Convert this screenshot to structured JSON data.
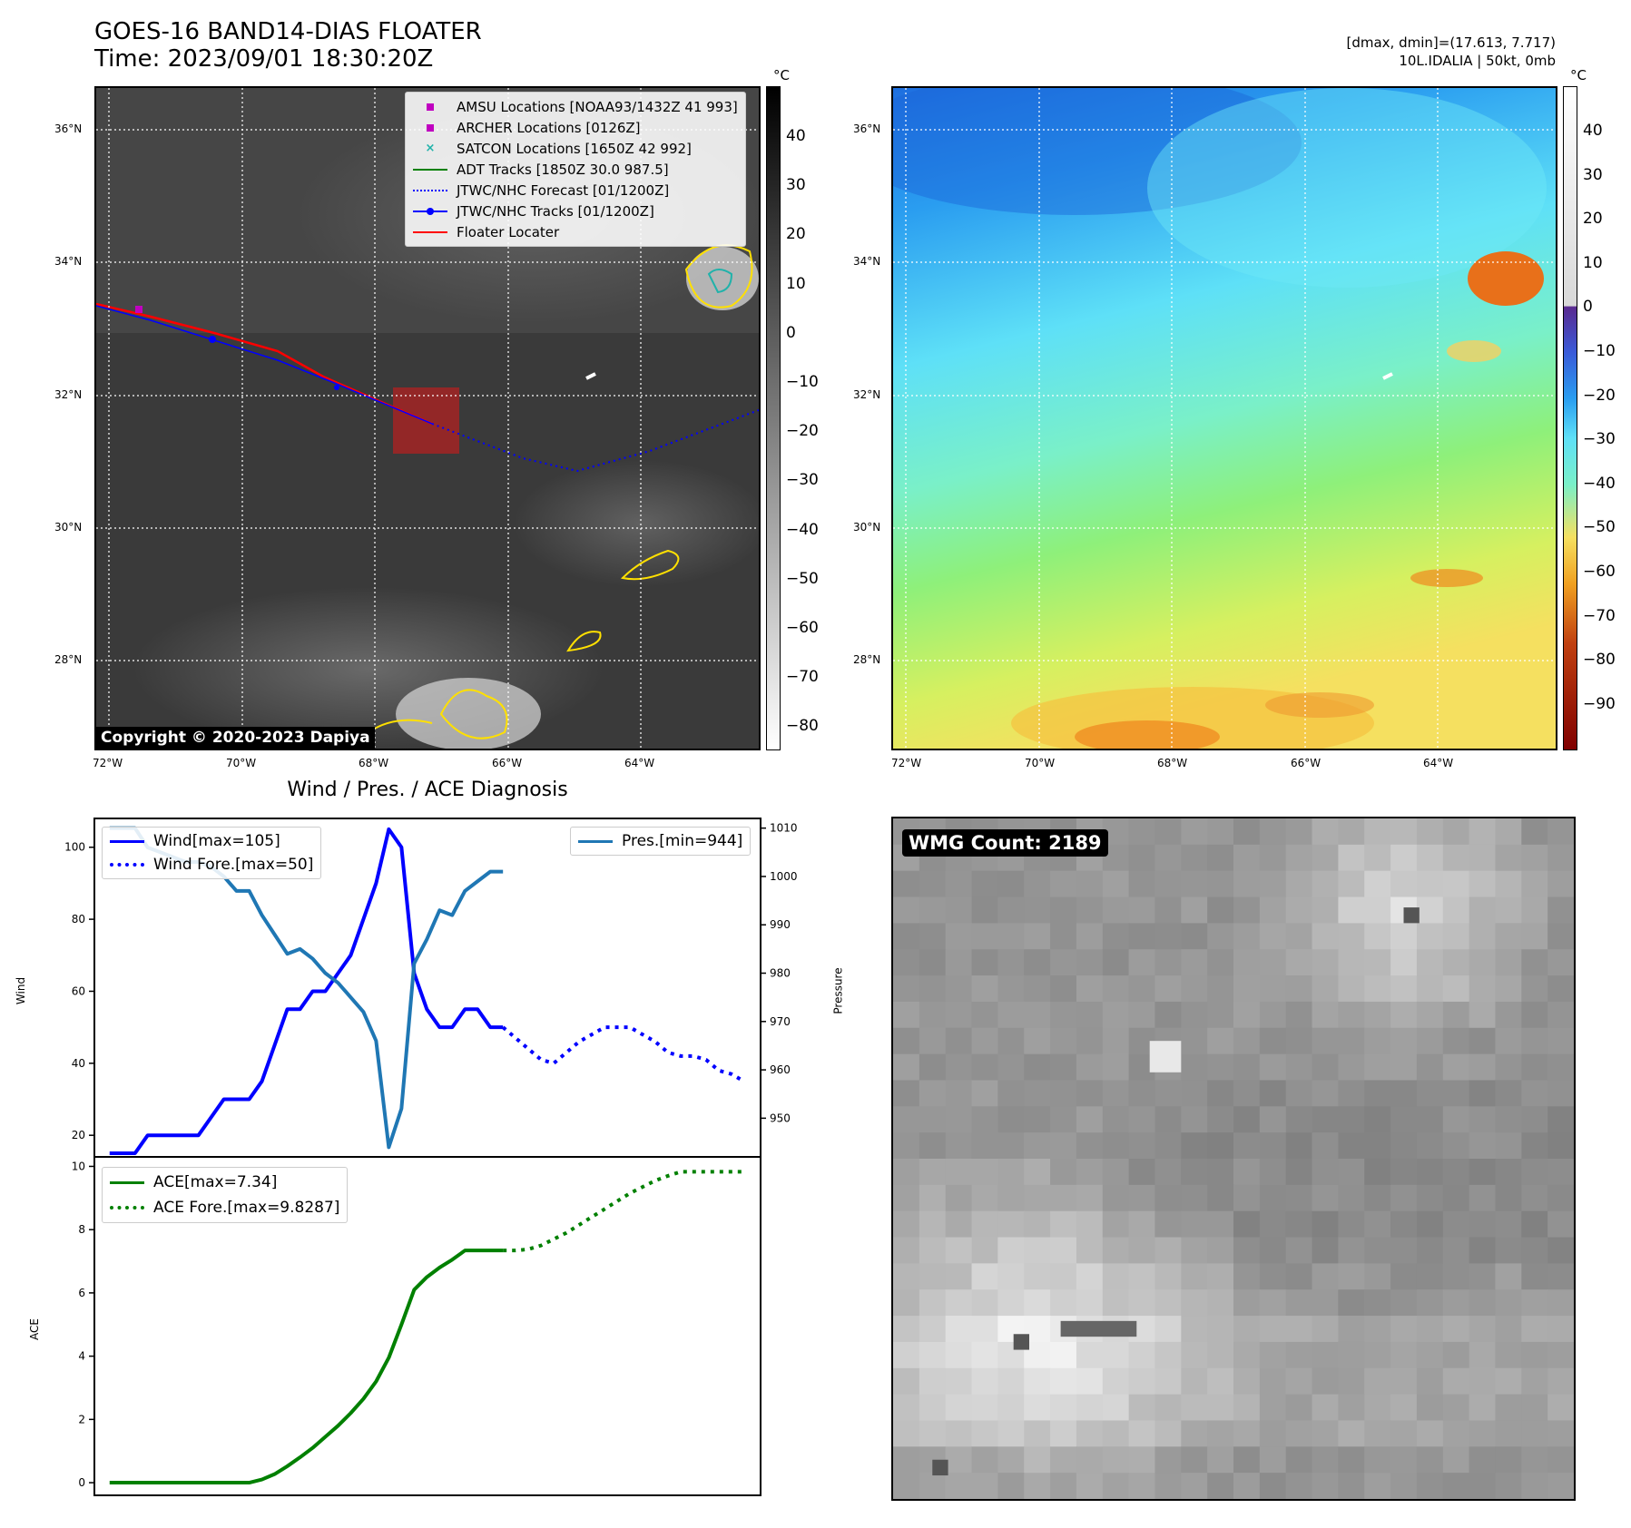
{
  "header": {
    "title_line1": "GOES-16 BAND14-DIAS FLOATER",
    "title_line2": "Time: 2023/09/01 18:30:20Z",
    "right_line1": "[dmax, dmin]=(17.613, 7.717)",
    "right_line2": "10L.IDALIA | 50kt, 0mb"
  },
  "map": {
    "lat_labels": [
      "36°N",
      "34°N",
      "32°N",
      "30°N",
      "28°N"
    ],
    "lon_labels": [
      "72°W",
      "70°W",
      "68°W",
      "66°W",
      "64°W"
    ],
    "copyright": "Copyright © 2020-2023 Dapiya",
    "colorbar_unit": "°C",
    "gray_ticks": [
      "40",
      "30",
      "20",
      "10",
      "0",
      "−10",
      "−20",
      "−30",
      "−40",
      "−50",
      "−60",
      "−70",
      "−80"
    ],
    "color_ticks": [
      "40",
      "30",
      "20",
      "10",
      "0",
      "−10",
      "−20",
      "−30",
      "−40",
      "−50",
      "−60",
      "−70",
      "−80",
      "−90"
    ],
    "legend": [
      {
        "label": "AMSU Locations [NOAA93/1432Z 41 993]",
        "color": "#c000c0",
        "style": "square"
      },
      {
        "label": "ARCHER Locations [0126Z]",
        "color": "#c000c0",
        "style": "square"
      },
      {
        "label": "SATCON Locations [1650Z 42 992]",
        "color": "#20b2aa",
        "style": "x"
      },
      {
        "label": "ADT Tracks [1850Z 30.0 987.5]",
        "color": "#008000",
        "style": "line"
      },
      {
        "label": "JTWC/NHC Forecast [01/1200Z]",
        "color": "#0000ff",
        "style": "dotted"
      },
      {
        "label": "JTWC/NHC Tracks [01/1200Z]",
        "color": "#0000ff",
        "style": "line-dot"
      },
      {
        "label": "Floater Locater",
        "color": "#ff0000",
        "style": "line"
      }
    ]
  },
  "diag_title": "Wind / Pres. / ACE Diagnosis",
  "wmg_label": "WMG Count: 2189",
  "chart_data": [
    {
      "type": "line",
      "title": "Wind / Pres. / ACE Diagnosis",
      "ylabel": "Wind",
      "y2label": "Pressure",
      "ylim": [
        14,
        108
      ],
      "y2lim": [
        942,
        1012
      ],
      "yticks": [
        20,
        40,
        60,
        80,
        100
      ],
      "y2ticks": [
        950,
        960,
        970,
        980,
        990,
        1000,
        1010
      ],
      "legend_left": [
        "Wind[max=105]",
        "Wind Fore.[max=50]"
      ],
      "legend_right": [
        "Pres.[min=944]"
      ],
      "series": [
        {
          "name": "Wind[max=105]",
          "color": "#0000ff",
          "style": "solid",
          "x": [
            0,
            1,
            2,
            3,
            4,
            5,
            6,
            7,
            8,
            9,
            10,
            11,
            12,
            13,
            14,
            15,
            16,
            17,
            18,
            19,
            20,
            21,
            22,
            23,
            24,
            25,
            26,
            27,
            28,
            29,
            30,
            31
          ],
          "y": [
            15,
            15,
            15,
            20,
            20,
            20,
            20,
            20,
            25,
            30,
            30,
            30,
            35,
            45,
            55,
            55,
            60,
            60,
            65,
            70,
            80,
            90,
            105,
            100,
            65,
            55,
            50,
            50,
            55,
            55,
            50,
            50
          ]
        },
        {
          "name": "Wind Fore.[max=50]",
          "color": "#0000ff",
          "style": "dotted",
          "x": [
            31,
            32,
            33,
            34,
            35,
            36,
            37,
            38,
            39,
            40,
            41,
            42,
            43,
            44,
            45,
            46,
            47,
            48,
            49,
            50
          ],
          "y": [
            50,
            47,
            44,
            41,
            40,
            43,
            46,
            48,
            50,
            50,
            50,
            48,
            46,
            43,
            42,
            42,
            41,
            38,
            37,
            35
          ]
        },
        {
          "name": "Pres.[min=944]",
          "color": "#1f77b4",
          "style": "solid",
          "axis": "y2",
          "x": [
            0,
            1,
            2,
            3,
            4,
            5,
            6,
            7,
            8,
            9,
            10,
            11,
            12,
            13,
            14,
            15,
            16,
            17,
            18,
            19,
            20,
            21,
            22,
            23,
            24,
            25,
            26,
            27,
            28,
            29,
            30,
            31
          ],
          "y": [
            1010,
            1010,
            1010,
            1006,
            1005,
            1004,
            1003,
            1003,
            1002,
            1000,
            997,
            997,
            992,
            988,
            984,
            985,
            983,
            980,
            978,
            975,
            972,
            966,
            944,
            952,
            982,
            987,
            993,
            992,
            997,
            999,
            1001,
            1001
          ]
        }
      ]
    },
    {
      "type": "line",
      "ylabel": "ACE",
      "ylim": [
        -0.4,
        10.3
      ],
      "yticks": [
        0,
        2,
        4,
        6,
        8,
        10
      ],
      "legend": [
        "ACE[max=7.34]",
        "ACE Fore.[max=9.8287]"
      ],
      "series": [
        {
          "name": "ACE[max=7.34]",
          "color": "#008000",
          "style": "solid",
          "x": [
            0,
            1,
            2,
            3,
            4,
            5,
            6,
            7,
            8,
            9,
            10,
            11,
            12,
            13,
            14,
            15,
            16,
            17,
            18,
            19,
            20,
            21,
            22,
            23,
            24,
            25,
            26,
            27,
            28,
            29,
            30,
            31
          ],
          "y": [
            0,
            0,
            0,
            0,
            0,
            0,
            0,
            0,
            0,
            0,
            0,
            0,
            0.1,
            0.27,
            0.52,
            0.8,
            1.1,
            1.45,
            1.8,
            2.2,
            2.65,
            3.2,
            3.95,
            5.0,
            6.1,
            6.5,
            6.8,
            7.05,
            7.34,
            7.34,
            7.34,
            7.34
          ]
        },
        {
          "name": "ACE Fore.[max=9.8287]",
          "color": "#008000",
          "style": "dotted",
          "x": [
            31,
            32,
            33,
            34,
            35,
            36,
            37,
            38,
            39,
            40,
            41,
            42,
            43,
            44,
            45,
            46,
            47,
            48,
            49,
            50
          ],
          "y": [
            7.34,
            7.34,
            7.38,
            7.5,
            7.7,
            7.9,
            8.15,
            8.4,
            8.65,
            8.9,
            9.15,
            9.35,
            9.55,
            9.7,
            9.83,
            9.83,
            9.83,
            9.83,
            9.83,
            9.83
          ]
        }
      ]
    }
  ]
}
